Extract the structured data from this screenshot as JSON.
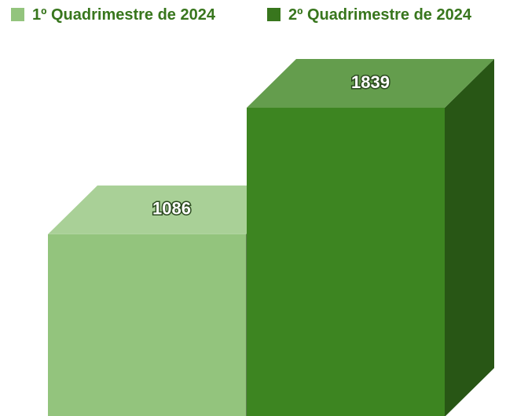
{
  "chart_data": {
    "type": "bar3d",
    "series": [
      {
        "name": "1º Quadrimestre de 2024",
        "color": "#93c47d",
        "values": [
          1086
        ]
      },
      {
        "name": "2º Quadrimestre de 2024",
        "color": "#3d8521",
        "values": [
          1839
        ]
      }
    ],
    "legend": "top"
  }
}
